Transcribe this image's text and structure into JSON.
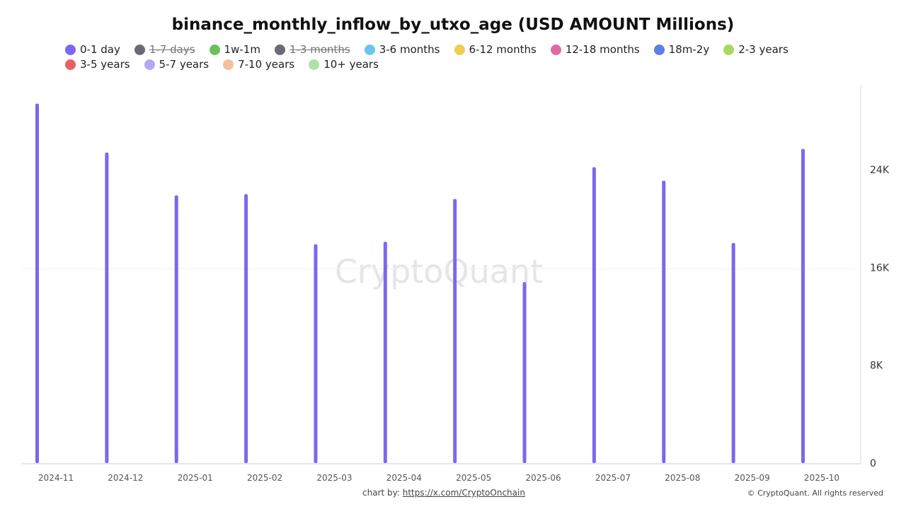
{
  "chart_data": {
    "type": "bar",
    "title": "binance_monthly_inflow_by_utxo_age (USD AMOUNT Millions)",
    "categories": [
      "2024-11",
      "2024-12",
      "2025-01",
      "2025-02",
      "2025-03",
      "2025-04",
      "2025-05",
      "2025-06",
      "2025-07",
      "2025-08",
      "2025-09",
      "2025-10"
    ],
    "legend": [
      {
        "name": "0-1 day",
        "color": "#7b68ee",
        "hidden": false
      },
      {
        "name": "1-7 days",
        "color": "#6b6b75",
        "hidden": true
      },
      {
        "name": "1w-1m",
        "color": "#6cc060",
        "hidden": false
      },
      {
        "name": "1-3 months",
        "color": "#6b6b75",
        "hidden": true
      },
      {
        "name": "3-6 months",
        "color": "#6ac6ea",
        "hidden": false
      },
      {
        "name": "6-12 months",
        "color": "#f0cc50",
        "hidden": false
      },
      {
        "name": "12-18 months",
        "color": "#e06aa0",
        "hidden": false
      },
      {
        "name": "18m-2y",
        "color": "#5a80e8",
        "hidden": false
      },
      {
        "name": "2-3 years",
        "color": "#a8d860",
        "hidden": false
      },
      {
        "name": "3-5 years",
        "color": "#e86060",
        "hidden": false
      },
      {
        "name": "5-7 years",
        "color": "#b4a8f4",
        "hidden": false
      },
      {
        "name": "7-10 years",
        "color": "#f4c09a",
        "hidden": false
      },
      {
        "name": "10+ years",
        "color": "#b0e0a8",
        "hidden": false
      }
    ],
    "series": [
      {
        "name": "0-1 day",
        "color": "#7b68ee",
        "values": [
          29400,
          25400,
          21900,
          22000,
          17900,
          18100,
          21600,
          14800,
          24200,
          23100,
          18000,
          25700
        ]
      }
    ],
    "ylim": [
      0,
      31000
    ],
    "yticks": [
      0,
      8000,
      16000,
      24000
    ],
    "ytick_labels": [
      "0",
      "8K",
      "16K",
      "24K"
    ],
    "yaxis_position": "right",
    "grid": false,
    "legend_placement": "top"
  },
  "watermark": "CryptoQuant",
  "footer": {
    "prefix": "chart by: ",
    "link": "https://x.com/CryptoOnchain",
    "copyright": "© CryptoQuant. All rights reserved"
  }
}
